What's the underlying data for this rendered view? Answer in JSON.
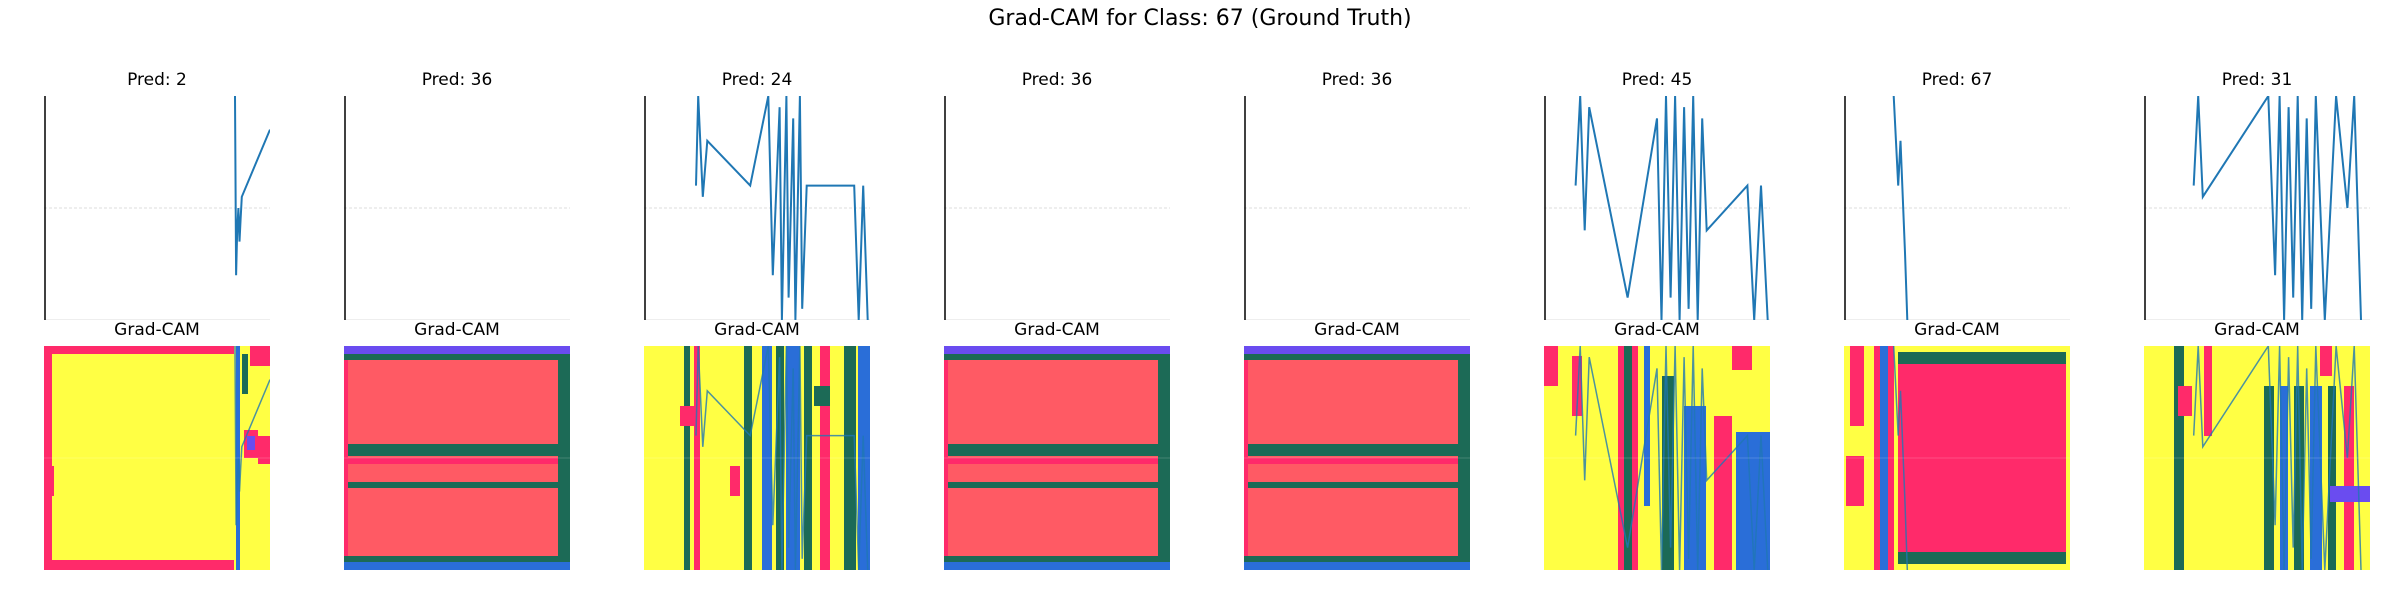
{
  "figure": {
    "suptitle": "Grad-CAM for Class: 67 (Ground Truth)"
  },
  "heatmap_colors": {
    "yellow": "#ffff44",
    "red": "#ff5a64",
    "deep_pink": "#ff2a6a",
    "dark_green": "#1c6a56",
    "blue": "#2a6ed8",
    "violet": "#6a4cf0",
    "line": "#1f77b4"
  },
  "chart_data": [
    {
      "type": "line",
      "title": "Pred: 2",
      "panel": "signal",
      "grid": true,
      "axis": "left only",
      "x": [
        0,
        0.845,
        0.85,
        0.855,
        0.86,
        0.865,
        0.87,
        0.875,
        1.0
      ],
      "y": [
        null,
        1.0,
        0.2,
        0.4,
        0.5,
        0.35,
        0.45,
        0.55,
        0.85
      ]
    },
    {
      "type": "heatmap",
      "title": "Grad-CAM",
      "panel": "cam",
      "pattern": "mostly yellow, red border, narrow band at right",
      "dominant": "yellow"
    },
    {
      "type": "line",
      "title": "Pred: 36",
      "panel": "signal",
      "grid": true,
      "axis": "left only",
      "x": [],
      "y": []
    },
    {
      "type": "heatmap",
      "title": "Grad-CAM",
      "panel": "cam",
      "pattern": "red field with dark green horizontal stripes",
      "dominant": "red"
    },
    {
      "type": "line",
      "title": "Pred: 24",
      "panel": "signal",
      "grid": true,
      "axis": "left only",
      "note": "dense vertical strokes",
      "x": [
        0.23,
        0.24,
        0.26,
        0.28,
        0.47,
        0.55,
        0.57,
        0.6,
        0.61,
        0.63,
        0.64,
        0.66,
        0.67,
        0.69,
        0.7,
        0.72,
        0.93,
        0.95,
        0.97,
        0.99
      ],
      "y": [
        0.6,
        1.0,
        0.55,
        0.8,
        0.6,
        1.0,
        0.2,
        0.95,
        0.0,
        1.0,
        0.1,
        0.9,
        0.0,
        1.0,
        0.05,
        0.6,
        0.6,
        0.0,
        0.6,
        0.0
      ]
    },
    {
      "type": "heatmap",
      "title": "Grad-CAM",
      "panel": "cam",
      "pattern": "yellow with green and blue vertical bands",
      "dominant": "yellow"
    },
    {
      "type": "line",
      "title": "Pred: 36",
      "panel": "signal",
      "grid": true,
      "axis": "left only",
      "x": [],
      "y": []
    },
    {
      "type": "heatmap",
      "title": "Grad-CAM",
      "panel": "cam",
      "pattern": "red field with dark green horizontal stripes",
      "dominant": "red"
    },
    {
      "type": "line",
      "title": "Pred: 36",
      "panel": "signal",
      "grid": true,
      "axis": "left only",
      "x": [],
      "y": []
    },
    {
      "type": "heatmap",
      "title": "Grad-CAM",
      "panel": "cam",
      "pattern": "red field with dark green horizontal stripes",
      "dominant": "red"
    },
    {
      "type": "line",
      "title": "Pred: 45",
      "panel": "signal",
      "grid": true,
      "axis": "left only",
      "note": "dense vertical strokes",
      "x": [
        0.14,
        0.16,
        0.18,
        0.2,
        0.37,
        0.5,
        0.52,
        0.54,
        0.56,
        0.58,
        0.6,
        0.62,
        0.64,
        0.66,
        0.68,
        0.7,
        0.72,
        0.9,
        0.93,
        0.96,
        0.99
      ],
      "y": [
        0.6,
        1.0,
        0.4,
        0.95,
        0.1,
        0.9,
        0.0,
        1.0,
        0.1,
        1.0,
        0.0,
        0.95,
        0.05,
        1.0,
        0.0,
        0.9,
        0.4,
        0.6,
        0.0,
        0.6,
        0.0
      ]
    },
    {
      "type": "heatmap",
      "title": "Grad-CAM",
      "panel": "cam",
      "pattern": "yellow with red blobs and blue vertical bars",
      "dominant": "yellow"
    },
    {
      "type": "line",
      "title": "Pred: 67",
      "panel": "signal",
      "grid": true,
      "axis": "left only",
      "x": [
        0.22,
        0.24,
        0.25,
        0.27,
        0.28
      ],
      "y": [
        1.0,
        0.6,
        0.8,
        0.3,
        0.0
      ]
    },
    {
      "type": "heatmap",
      "title": "Grad-CAM",
      "panel": "cam",
      "pattern": "large deep pink block with yellow edges",
      "dominant": "deep_pink"
    },
    {
      "type": "line",
      "title": "Pred: 31",
      "panel": "signal",
      "grid": true,
      "axis": "left only",
      "note": "dense vertical strokes",
      "x": [
        0.22,
        0.24,
        0.26,
        0.55,
        0.58,
        0.6,
        0.62,
        0.64,
        0.66,
        0.68,
        0.7,
        0.72,
        0.74,
        0.76,
        0.8,
        0.85,
        0.9,
        0.93,
        0.96
      ],
      "y": [
        0.6,
        1.0,
        0.55,
        1.0,
        0.2,
        1.0,
        0.0,
        0.95,
        0.1,
        1.0,
        0.0,
        0.9,
        0.05,
        1.0,
        0.0,
        1.0,
        0.5,
        1.0,
        0.0
      ]
    },
    {
      "type": "heatmap",
      "title": "Grad-CAM",
      "panel": "cam",
      "pattern": "yellow with red blobs and green/blue vertical bands",
      "dominant": "yellow"
    }
  ]
}
